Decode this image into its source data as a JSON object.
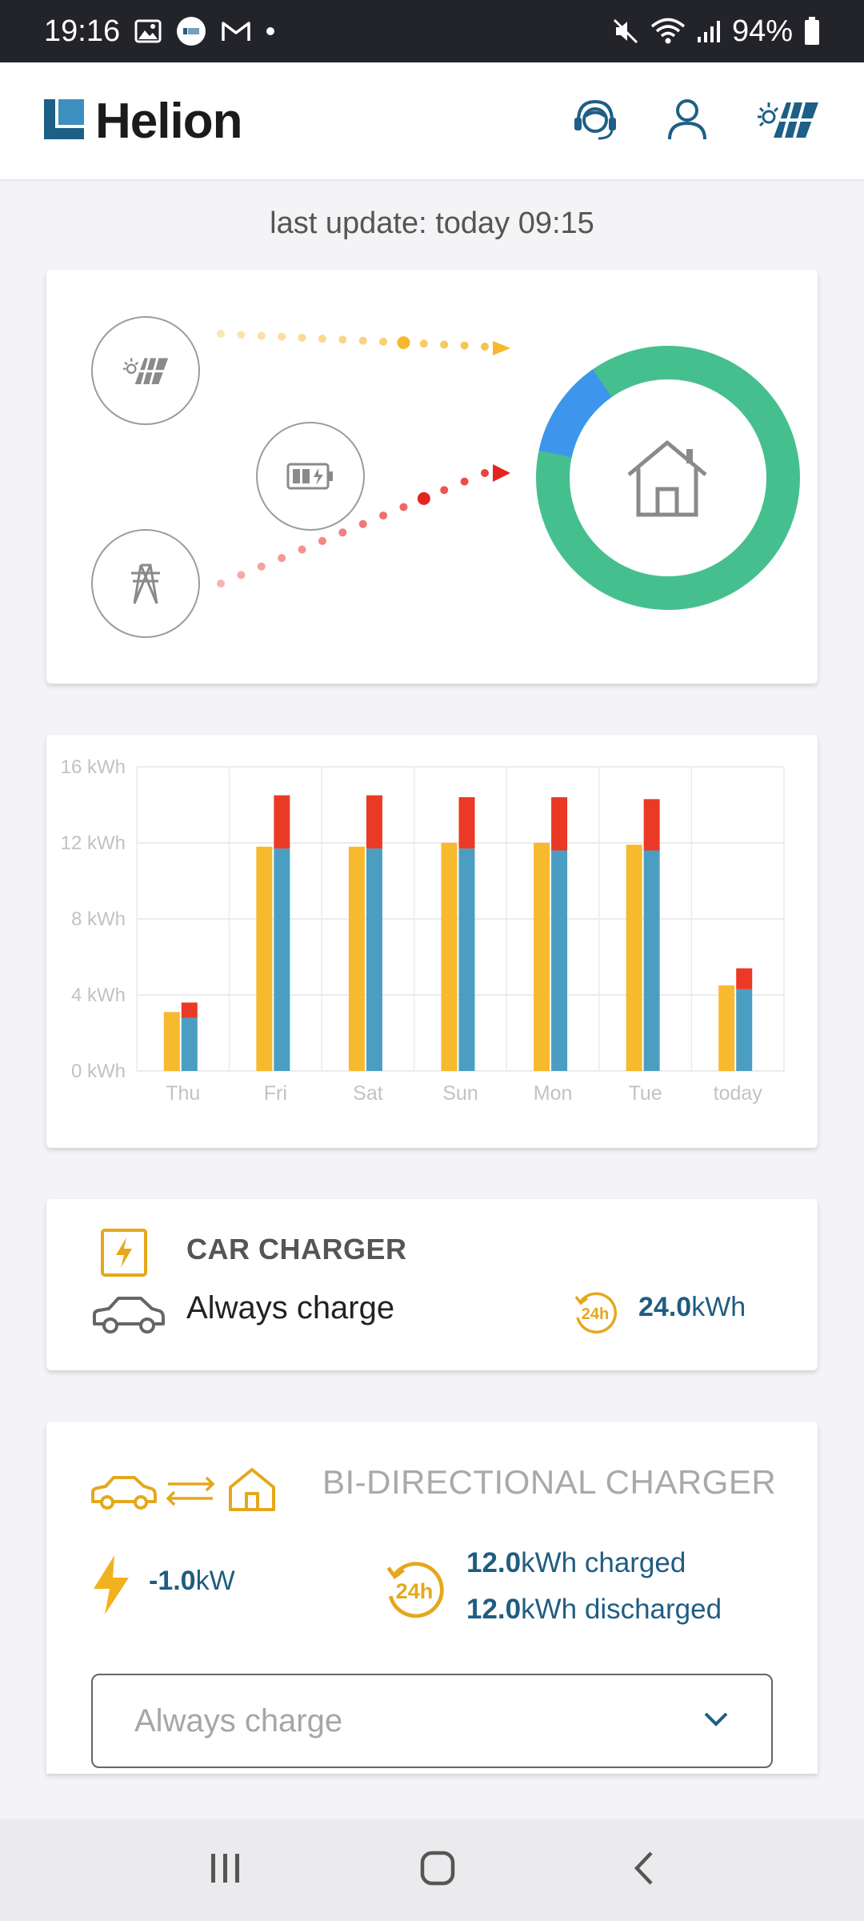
{
  "status_bar": {
    "time": "19:16",
    "battery": "94%"
  },
  "header": {
    "logo_text": "Helion"
  },
  "last_update": "last update: today 09:15",
  "flow": {
    "home_share_solar": 0.88,
    "home_share_grid": 0.12,
    "colors": {
      "solar": "#f5b82e",
      "grid": "#e5241f",
      "home_green": "#46bf8f",
      "home_blue": "#3d96ec"
    }
  },
  "chart_data": {
    "type": "bar",
    "categories": [
      "Thu",
      "Fri",
      "Sat",
      "Sun",
      "Mon",
      "Tue",
      "today"
    ],
    "ylim": [
      0,
      16
    ],
    "yticks": [
      "0 kWh",
      "4 kWh",
      "8 kWh",
      "12 kWh",
      "16 kWh"
    ],
    "ytick_values": [
      0,
      4,
      8,
      12,
      16
    ],
    "series": [
      {
        "values": [
          3.1,
          11.8,
          11.8,
          12.0,
          12.0,
          11.9,
          4.5
        ],
        "color": "#f7b92d"
      },
      {
        "values": [
          2.8,
          11.7,
          11.7,
          11.7,
          11.6,
          11.6,
          4.3
        ],
        "color": "#4b9ec1",
        "stack": "b"
      },
      {
        "values": [
          0.8,
          2.8,
          2.8,
          2.7,
          2.8,
          2.7,
          1.1
        ],
        "color": "#ea3a25",
        "stack": "b"
      }
    ]
  },
  "car_charger": {
    "title": "CAR CHARGER",
    "mode": "Always charge",
    "energy_value": "24.0",
    "energy_unit": "kWh",
    "badge": "24h"
  },
  "bidirectional": {
    "title": "BI-DIRECTIONAL CHARGER",
    "power_value": "-1.0",
    "power_unit": "kW",
    "badge": "24h",
    "charged_value": "12.0",
    "charged_label": "kWh charged",
    "discharged_value": "12.0",
    "discharged_label": "kWh discharged",
    "select_value": "Always charge"
  }
}
